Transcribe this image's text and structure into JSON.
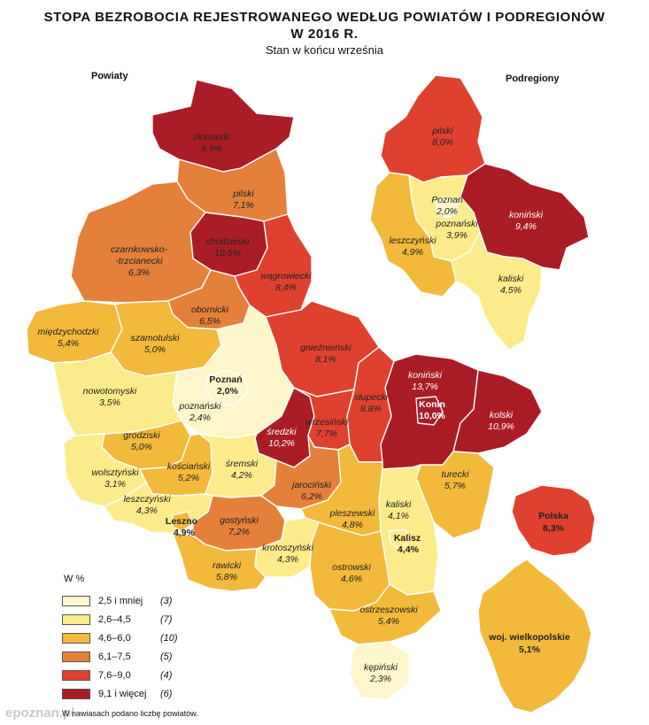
{
  "title_line1": "STOPA BEZROBOCIA REJESTROWANEGO WEDŁUG POWIATÓW I PODREGIONÓW",
  "title_line2": "W 2016 R.",
  "subtitle": "Stan w końcu września",
  "section_powiaty": "Powiaty",
  "section_podregiony": "Podregiony",
  "colors": {
    "c1": "#fdf6cc",
    "c2": "#fbeb8a",
    "c3": "#f2b93b",
    "c4": "#e5803a",
    "c5": "#e0412e",
    "c6": "#aa1d26"
  },
  "legend": {
    "title": "W %",
    "items": [
      {
        "range": "2,5 i mniej",
        "count": "(3)",
        "color": "#fdf6cc"
      },
      {
        "range": "2,6–4,5",
        "count": "(7)",
        "color": "#fbeb8a"
      },
      {
        "range": "4,6–6,0",
        "count": "(10)",
        "color": "#f2b93b"
      },
      {
        "range": "6,1–7,5",
        "count": "(5)",
        "color": "#e5803a"
      },
      {
        "range": "7,6–9,0",
        "count": "(4)",
        "color": "#e0412e"
      },
      {
        "range": "9,1 i więcej",
        "count": "(6)",
        "color": "#aa1d26"
      }
    ]
  },
  "powiaty": [
    {
      "name": "złotowski",
      "value": "9,9%"
    },
    {
      "name": "pilski",
      "value": "7,1%"
    },
    {
      "name": "chodzieski",
      "value": "10,5%"
    },
    {
      "name": "czarnkowsko-",
      "name2": "-trzcianecki",
      "value": "6,3%"
    },
    {
      "name": "wągrowiecki",
      "value": "8,4%"
    },
    {
      "name": "obornicki",
      "value": "6,5%"
    },
    {
      "name": "międzychodzki",
      "value": "5,4%"
    },
    {
      "name": "szamotulski",
      "value": "5,0%"
    },
    {
      "name": "gnieźnieński",
      "value": "8,1%"
    },
    {
      "name": "Poznań",
      "value": "2,0%"
    },
    {
      "name": "poznański",
      "value": "2,4%"
    },
    {
      "name": "nowotomyski",
      "value": "3,5%"
    },
    {
      "name": "koniński",
      "value": "13,7%"
    },
    {
      "name": "Konin",
      "value": "10,0%"
    },
    {
      "name": "słupecki",
      "value": "8,8%"
    },
    {
      "name": "kolski",
      "value": "10,9%"
    },
    {
      "name": "średzki",
      "value": "10,2%"
    },
    {
      "name": "wrzesiński",
      "value": "7,7%"
    },
    {
      "name": "grodziski",
      "value": "5,0%"
    },
    {
      "name": "kościański",
      "value": "5,2%"
    },
    {
      "name": "śremski",
      "value": "4,2%"
    },
    {
      "name": "wolsztyński",
      "value": "3,1%"
    },
    {
      "name": "jarociński",
      "value": "6,2%"
    },
    {
      "name": "turecki",
      "value": "5,7%"
    },
    {
      "name": "leszczyński",
      "value": "4,3%"
    },
    {
      "name": "Leszno",
      "value": "4,9%"
    },
    {
      "name": "gostyński",
      "value": "7,2%"
    },
    {
      "name": "pleszewski",
      "value": "4,8%"
    },
    {
      "name": "kaliski",
      "value": "4,1%"
    },
    {
      "name": "Kalisz",
      "value": "4,4%"
    },
    {
      "name": "krotoszyński",
      "value": "4,3%"
    },
    {
      "name": "rawicki",
      "value": "5,8%"
    },
    {
      "name": "ostrowski",
      "value": "4,6%"
    },
    {
      "name": "ostrzeszowski",
      "value": "5,4%"
    },
    {
      "name": "kępiński",
      "value": "2,3%"
    }
  ],
  "podregiony": [
    {
      "name": "pilski",
      "value": "8,0%"
    },
    {
      "name": "Poznań",
      "value": "2,0%"
    },
    {
      "name": "poznański",
      "value": "3,9%"
    },
    {
      "name": "koniński",
      "value": "9,4%"
    },
    {
      "name": "leszczyński",
      "value": "4,9%"
    },
    {
      "name": "kaliski",
      "value": "4,5%"
    }
  ],
  "polska": {
    "name": "Polska",
    "value": "8,3%"
  },
  "wojewodztwo": {
    "name": "woj. wielkopolskie",
    "value": "5,1%"
  },
  "footnote": "W nawiasach podano liczbę powiatów.",
  "watermark": "epoznan.pl"
}
